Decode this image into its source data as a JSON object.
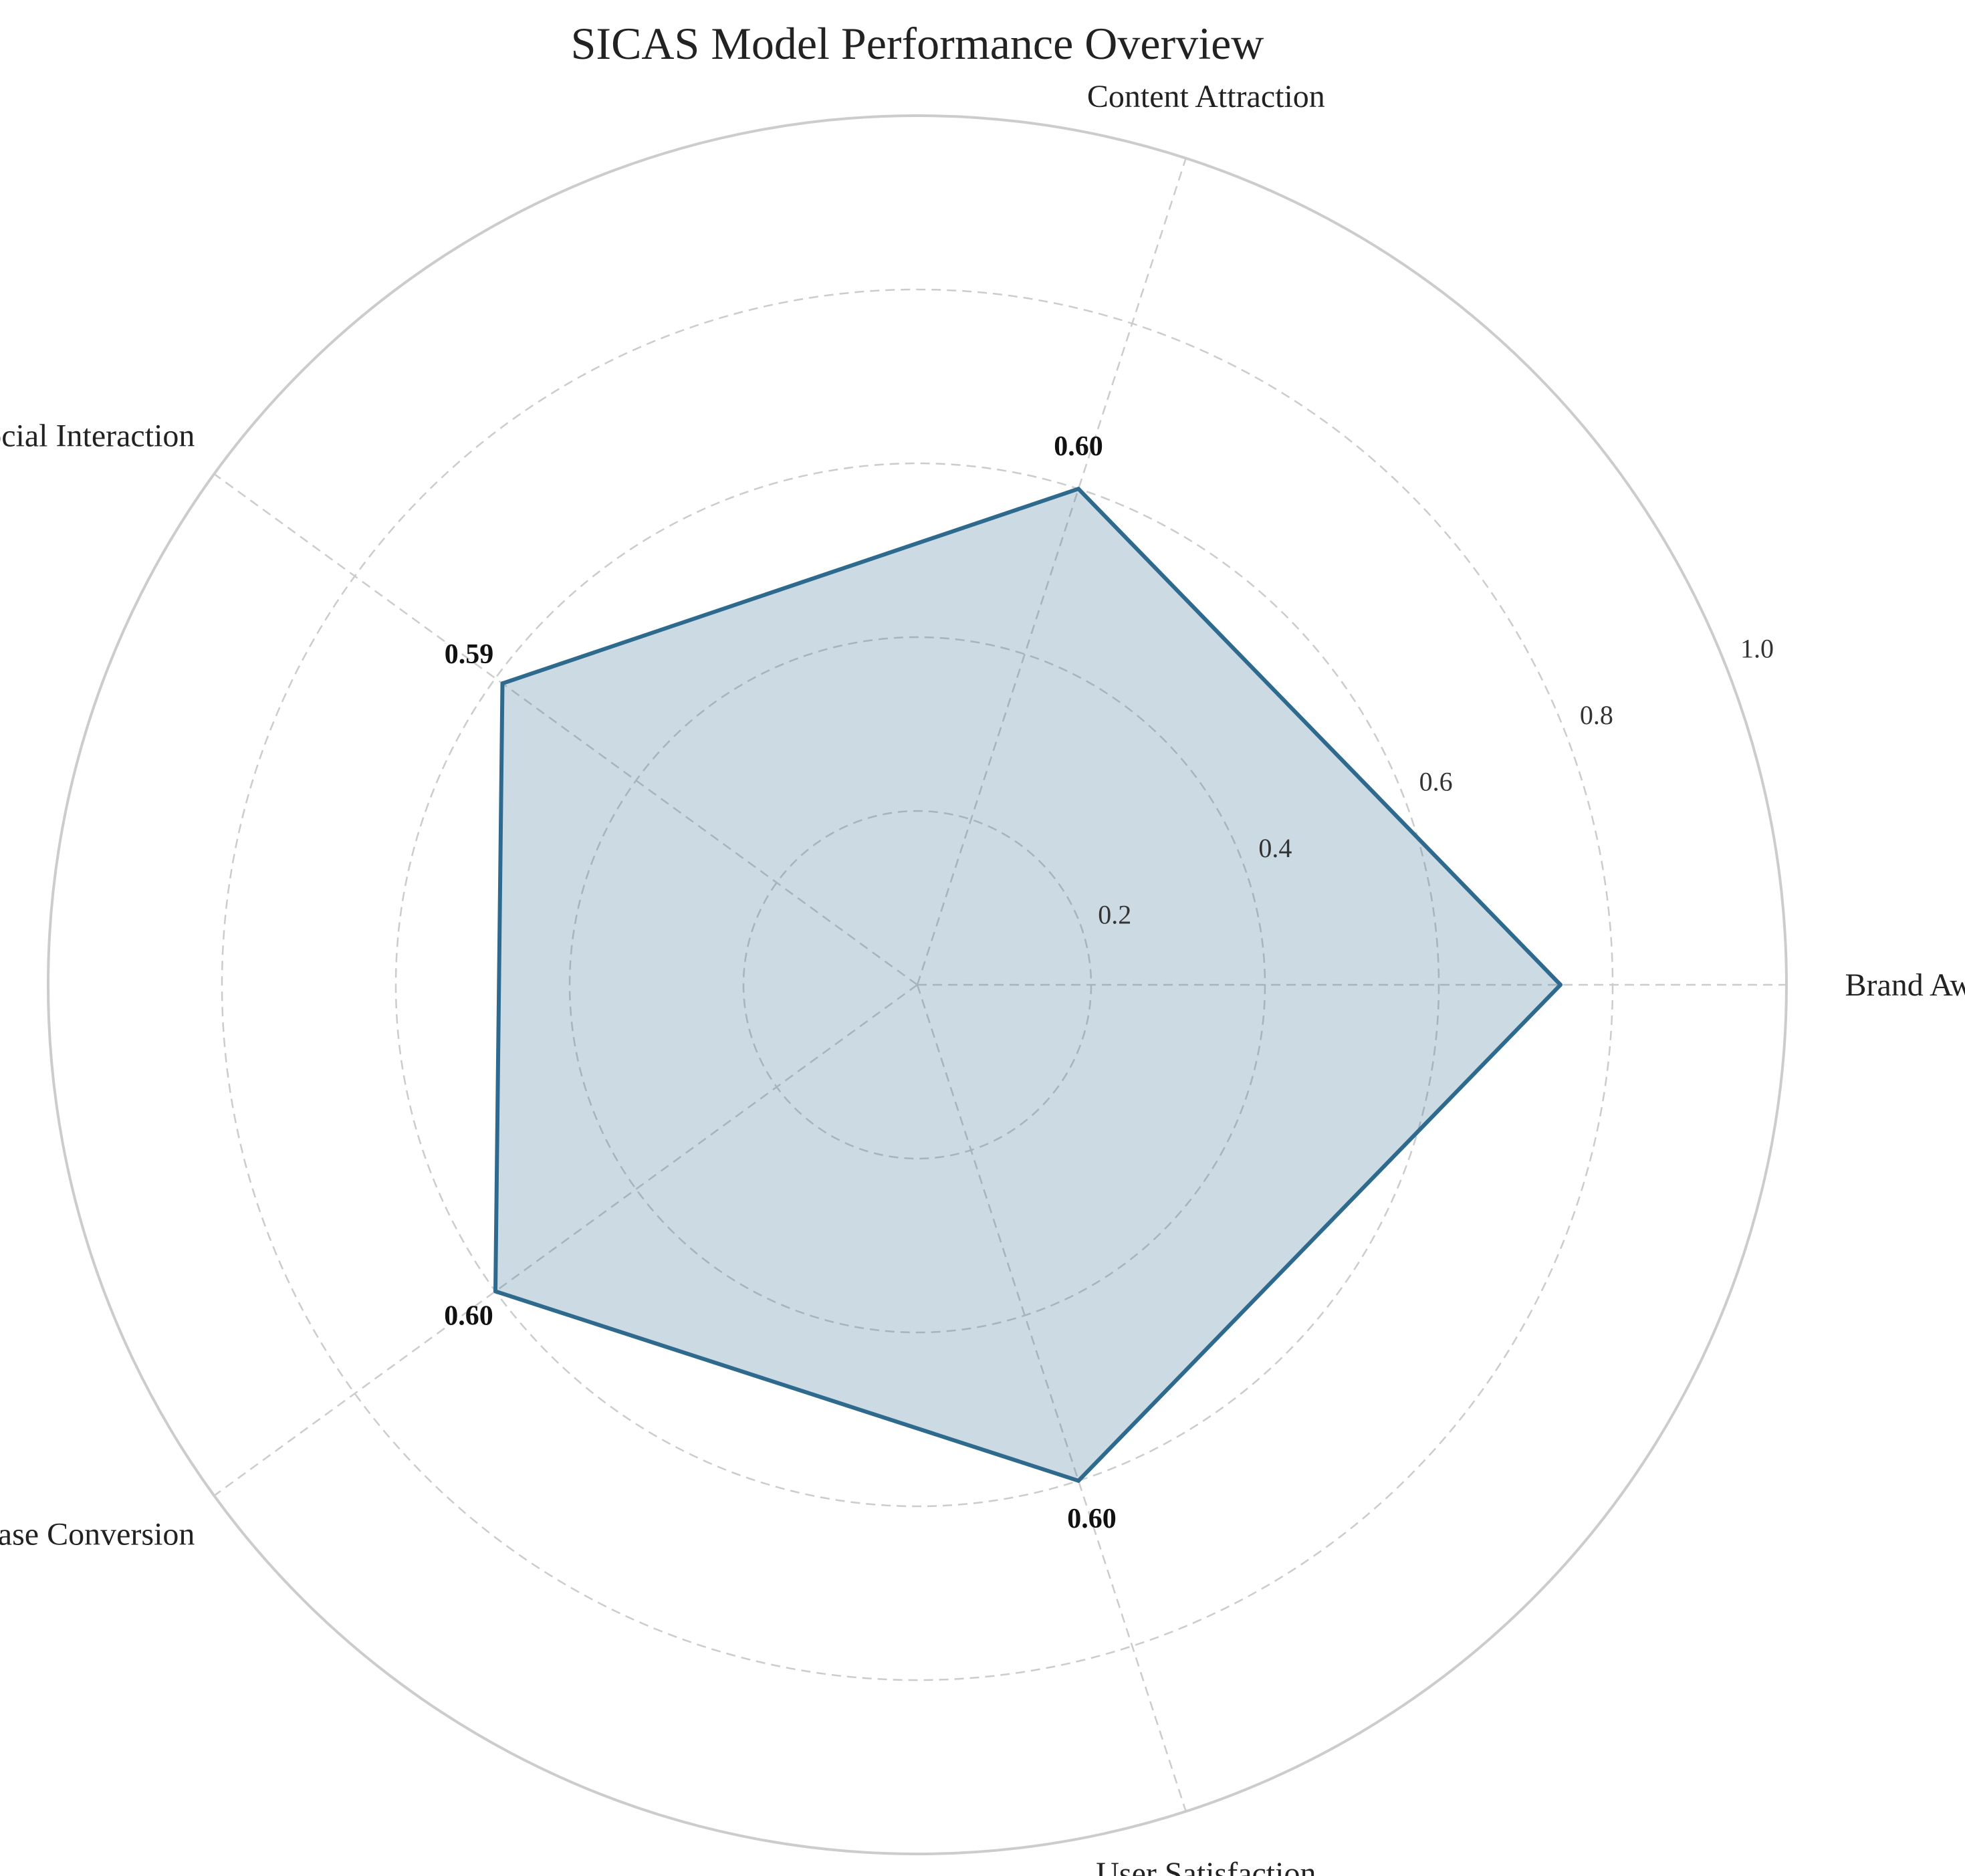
{
  "chart_data": {
    "type": "radar",
    "title": "SICAS Model Performance Overview",
    "categories": [
      "Brand Awareness",
      "Content Attraction",
      "Social Interaction",
      "Purchase Conversion",
      "User Satisfaction"
    ],
    "values": [
      0.74,
      0.6,
      0.59,
      0.6,
      0.6
    ],
    "value_labels": [
      "",
      "0.60",
      "0.59",
      "0.60",
      "0.60"
    ],
    "rlim": [
      0,
      1.0
    ],
    "rticks": [
      0.2,
      0.4,
      0.6,
      0.8,
      1.0
    ],
    "rtick_labels": [
      "0.2",
      "0.4",
      "0.6",
      "0.8",
      "1.0"
    ],
    "grid": true,
    "colors": {
      "line": "#2e6a8e",
      "fill": "#2e6a8e",
      "grid": "#cccccc",
      "outer_ring": "#cccccc"
    }
  }
}
